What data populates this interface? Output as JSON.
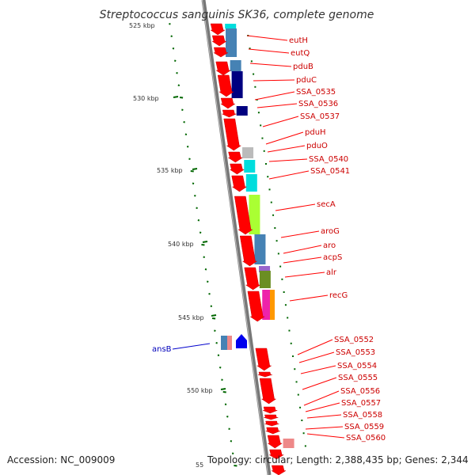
{
  "title": "Streptococcus sanguinis SK36, complete genome",
  "footer": {
    "accession": "Accession: NC_009009",
    "topology": "Topology: circular; Length: 2,388,435 bp; Genes: 2,344"
  },
  "scale_labels": [
    "525 kbp",
    "530 kbp",
    "535 kbp",
    "540 kbp",
    "545 kbp",
    "550 kbp",
    "55"
  ],
  "gene_labels_right": [
    "eutH",
    "eutQ",
    "pduB",
    "pduC",
    "SSA_0535",
    "SSA_0536",
    "SSA_0537",
    "pduH",
    "pduO",
    "SSA_0540",
    "SSA_0541",
    "secA",
    "aroG",
    "aro",
    "acpS",
    "alr",
    "recG",
    "SSA_0552",
    "SSA_0553",
    "SSA_0554",
    "SSA_0555",
    "SSA_0556",
    "SSA_0557",
    "SSA_0558",
    "SSA_0559",
    "SSA_0560"
  ],
  "gene_labels_left": [
    "ansB"
  ],
  "colors": {
    "gene_red": "#ff0000",
    "gene_blue": "#0000ee",
    "backbone": "#888888",
    "tick_green": "#006600",
    "label_line_red": "#ff0000",
    "label_line_blue": "#0000cc",
    "cog_navy": "#000080",
    "cog_steel": "#4682b4",
    "cog_cyan": "#00dddd",
    "cog_lime": "#aaff33",
    "cog_olive": "#6b8e23",
    "cog_magenta": "#ee22aa",
    "cog_orange": "#ff9900",
    "cog_pink": "#ee8888",
    "cog_grey": "#bbbbbb"
  }
}
